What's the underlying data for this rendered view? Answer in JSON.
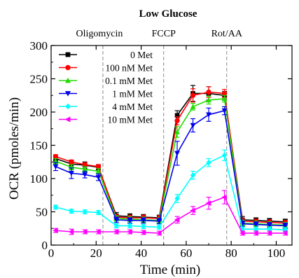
{
  "chart_data": {
    "type": "line",
    "title": "Low Glucose",
    "xlabel": "Time (min)",
    "ylabel": "OCR (pmoles/min)",
    "xlim": [
      0,
      107
    ],
    "ylim": [
      0,
      300
    ],
    "x_ticks": [
      0,
      20,
      40,
      60,
      80,
      100
    ],
    "y_ticks": [
      0,
      50,
      100,
      150,
      200,
      250,
      300
    ],
    "grid": false,
    "legend_position": "top-left",
    "annotations": [
      {
        "label": "Oligomycin",
        "x": 23
      },
      {
        "label": "FCCP",
        "x": 50
      },
      {
        "label": "Rot/AA",
        "x": 78
      }
    ],
    "x": [
      2,
      9,
      15,
      21,
      29,
      35,
      41,
      48,
      56,
      63,
      70,
      77,
      85,
      91,
      97,
      104
    ],
    "series": [
      {
        "name": "0 Met",
        "color": "#000000",
        "marker": "square",
        "values": [
          130,
          122,
          120,
          117,
          44,
          43,
          42,
          41,
          195,
          228,
          228,
          225,
          38,
          37,
          36,
          35
        ],
        "errors": [
          4,
          5,
          5,
          4,
          5,
          4,
          4,
          4,
          7,
          12,
          10,
          6,
          5,
          4,
          4,
          4
        ]
      },
      {
        "name": "100 nM Met",
        "color": "#ff0000",
        "marker": "circle",
        "values": [
          133,
          125,
          121,
          118,
          42,
          41,
          41,
          40,
          187,
          225,
          230,
          228,
          36,
          35,
          34,
          33
        ],
        "errors": [
          3,
          3,
          3,
          3,
          4,
          4,
          4,
          4,
          6,
          10,
          8,
          6,
          4,
          4,
          4,
          4
        ]
      },
      {
        "name": "0.1 mM Met",
        "color": "#22dd00",
        "marker": "triangle-up",
        "values": [
          126,
          117,
          114,
          111,
          40,
          39,
          38,
          37,
          170,
          208,
          218,
          220,
          33,
          32,
          31,
          30
        ],
        "errors": [
          4,
          4,
          4,
          4,
          4,
          4,
          4,
          4,
          8,
          5,
          6,
          5,
          4,
          4,
          4,
          4
        ]
      },
      {
        "name": "1 mM Met",
        "color": "#0000ee",
        "marker": "triangle-down",
        "values": [
          118,
          108,
          106,
          102,
          38,
          37,
          37,
          36,
          138,
          180,
          196,
          202,
          32,
          31,
          30,
          29
        ],
        "errors": [
          6,
          8,
          5,
          5,
          4,
          4,
          4,
          4,
          18,
          10,
          10,
          6,
          4,
          4,
          4,
          4
        ]
      },
      {
        "name": "4 mM Met",
        "color": "#00ffff",
        "marker": "diamond",
        "values": [
          57,
          51,
          50,
          49,
          29,
          29,
          28,
          27,
          70,
          105,
          124,
          135,
          24,
          24,
          24,
          23
        ],
        "errors": [
          3,
          3,
          3,
          3,
          3,
          3,
          3,
          3,
          6,
          6,
          6,
          8,
          3,
          3,
          3,
          3
        ]
      },
      {
        "name": "10 mM Met",
        "color": "#ff00ff",
        "marker": "triangle-left",
        "values": [
          22,
          20,
          20,
          20,
          20,
          20,
          19,
          18,
          38,
          52,
          63,
          72,
          18,
          18,
          18,
          18
        ],
        "errors": [
          3,
          4,
          3,
          3,
          3,
          3,
          3,
          3,
          5,
          6,
          9,
          10,
          3,
          3,
          3,
          3
        ]
      }
    ]
  }
}
